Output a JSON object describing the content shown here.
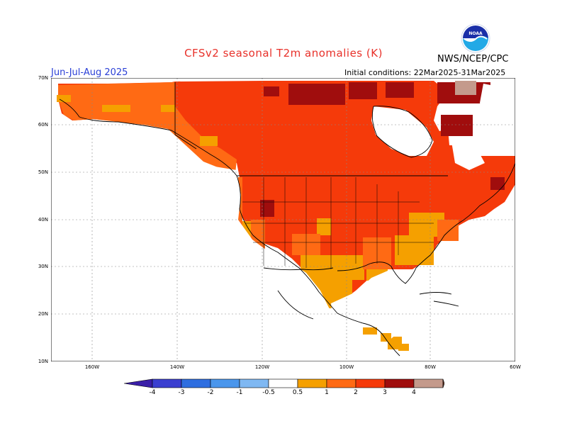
{
  "title": "CFSv2 seasonal T2m anomalies (K)",
  "agency": "NWS/NCEP/CPC",
  "season": "Jun-Jul-Aug 2025",
  "initial_conditions": "Initial conditions: 22Mar2025-31Mar2025",
  "logo": {
    "name": "noaa-logo",
    "text": "NOAA"
  },
  "colors": {
    "title": "#e8312a",
    "season": "#2a3fd6",
    "neg4": "#3a1ea8",
    "neg3": "#3b3fd0",
    "neg2": "#2e6ee0",
    "neg1": "#4a96ec",
    "neg05": "#7fb8f2",
    "pos05": "#f5a000",
    "pos1": "#ff6a14",
    "pos2": "#f53a0a",
    "pos3": "#a00d0d",
    "pos4": "#c49a8c",
    "pos5": "#6e3a2a"
  },
  "lat_labels": [
    "70N",
    "60N",
    "50N",
    "40N",
    "30N",
    "20N",
    "10N"
  ],
  "lon_labels": [
    "160W",
    "140W",
    "120W",
    "100W",
    "80W",
    "60W"
  ],
  "colorbar": {
    "labels": [
      "-4",
      "-3",
      "-2",
      "-1",
      "-0.5",
      "0.5",
      "1",
      "2",
      "3",
      "4"
    ]
  }
}
